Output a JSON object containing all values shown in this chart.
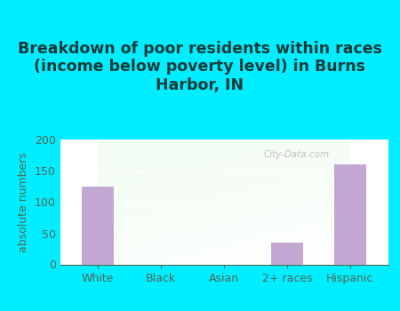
{
  "title": "Breakdown of poor residents within races\n(income below poverty level) in Burns\nHarbor, IN",
  "categories": [
    "White",
    "Black",
    "Asian",
    "2+ races",
    "Hispanic"
  ],
  "values": [
    125,
    0,
    0,
    35,
    160
  ],
  "bar_color": "#c4a8d4",
  "ylabel": "absolute numbers",
  "ylim": [
    0,
    200
  ],
  "yticks": [
    0,
    50,
    100,
    150,
    200
  ],
  "bg_outer": "#00eeff",
  "title_color": "#1a3a3a",
  "axis_color": "#556655",
  "title_fontsize": 12.5,
  "label_fontsize": 9,
  "tick_fontsize": 9,
  "watermark": "City-Data.com"
}
